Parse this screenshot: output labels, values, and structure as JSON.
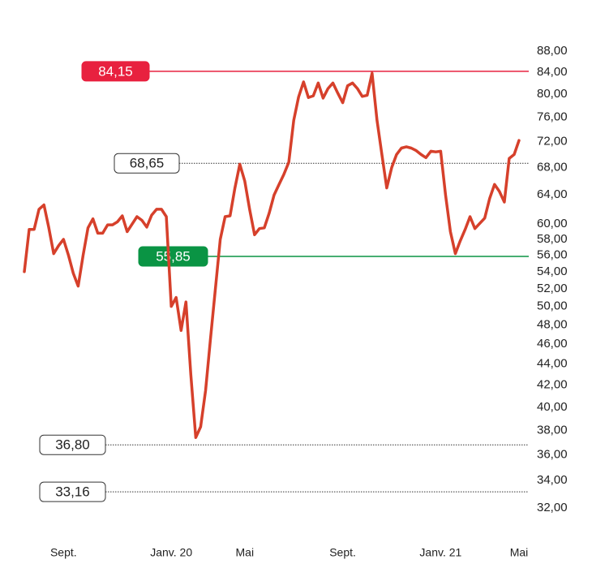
{
  "chart_data": {
    "type": "line",
    "log_scale": true,
    "categories": [
      null,
      null,
      null,
      null,
      null,
      null,
      null,
      null,
      "Sept.",
      null,
      null,
      null,
      null,
      null,
      null,
      null,
      null,
      null,
      null,
      null,
      null,
      null,
      null,
      null,
      null,
      null,
      null,
      null,
      null,
      null,
      "Janv. 20",
      null,
      null,
      null,
      null,
      null,
      null,
      null,
      null,
      null,
      null,
      null,
      null,
      null,
      null,
      "Mai",
      null,
      null,
      null,
      null,
      null,
      null,
      null,
      null,
      null,
      null,
      null,
      null,
      null,
      null,
      null,
      null,
      null,
      null,
      null,
      "Sept.",
      null,
      null,
      null,
      null,
      null,
      null,
      null,
      null,
      null,
      null,
      null,
      null,
      null,
      null,
      null,
      null,
      null,
      null,
      null,
      "Janv. 21",
      null,
      null,
      null,
      null,
      null,
      null,
      null,
      null,
      null,
      null,
      null,
      null,
      null,
      null,
      null,
      "Mai"
    ],
    "series": [
      {
        "color": "#d6402b",
        "values": [
          54.0,
          59.3,
          59.3,
          62.0,
          62.6,
          59.5,
          56.2,
          57.2,
          58.0,
          56.0,
          53.8,
          52.3,
          56.0,
          59.5,
          60.7,
          58.8,
          58.8,
          59.9,
          59.9,
          60.3,
          61.1,
          59.0,
          60.0,
          61.0,
          60.5,
          59.6,
          61.2,
          62.0,
          62.0,
          61.0,
          50.0,
          51.0,
          47.4,
          50.5,
          43.0,
          37.4,
          38.3,
          41.5,
          46.5,
          51.9,
          58.0,
          61.0,
          61.1,
          65.0,
          68.5,
          66.0,
          62.0,
          58.6,
          59.4,
          59.5,
          61.5,
          64.0,
          65.5,
          67.0,
          68.8,
          75.5,
          79.5,
          82.2,
          79.4,
          79.7,
          82.0,
          79.3,
          81.0,
          82.0,
          80.2,
          78.5,
          81.5,
          82.0,
          81.0,
          79.6,
          79.8,
          83.8,
          75.5,
          70.0,
          65.0,
          68.0,
          70.0,
          71.0,
          71.2,
          71.0,
          70.6,
          70.0,
          69.5,
          70.5,
          70.4,
          70.5,
          64.0,
          59.0,
          56.2,
          57.8,
          59.3,
          61.0,
          59.4,
          60.1,
          60.8,
          63.5,
          65.5,
          64.5,
          63.0,
          69.4,
          70.0,
          72.2
        ]
      }
    ],
    "ylim": [
      32,
      88
    ],
    "yticks": [
      {
        "value": 88,
        "label": "88,00"
      },
      {
        "value": 84,
        "label": "84,00"
      },
      {
        "value": 80,
        "label": "80,00"
      },
      {
        "value": 76,
        "label": "76,00"
      },
      {
        "value": 72,
        "label": "72,00"
      },
      {
        "value": 68,
        "label": "68,00"
      },
      {
        "value": 64,
        "label": "64,00"
      },
      {
        "value": 60,
        "label": "60,00"
      },
      {
        "value": 58,
        "label": "58,00"
      },
      {
        "value": 56,
        "label": "56,00"
      },
      {
        "value": 54,
        "label": "54,00"
      },
      {
        "value": 52,
        "label": "52,00"
      },
      {
        "value": 50,
        "label": "50,00"
      },
      {
        "value": 48,
        "label": "48,00"
      },
      {
        "value": 46,
        "label": "46,00"
      },
      {
        "value": 44,
        "label": "44,00"
      },
      {
        "value": 42,
        "label": "42,00"
      },
      {
        "value": 40,
        "label": "40,00"
      },
      {
        "value": 38,
        "label": "38,00"
      },
      {
        "value": 36,
        "label": "36,00"
      },
      {
        "value": 34,
        "label": "34,00"
      },
      {
        "value": 32,
        "label": "32,00"
      }
    ],
    "reference_lines": [
      {
        "value": 84.15,
        "label": "84,15",
        "color": "#e8213f",
        "style": "solid",
        "filled": true
      },
      {
        "value": 68.65,
        "label": "68,65",
        "color": "#333333",
        "style": "dotted",
        "filled": false
      },
      {
        "value": 55.85,
        "label": "55,85",
        "color": "#0a9444",
        "style": "solid",
        "filled": true
      },
      {
        "value": 36.8,
        "label": "36,80",
        "color": "#333333",
        "style": "dotted",
        "filled": false
      },
      {
        "value": 33.16,
        "label": "33,16",
        "color": "#333333",
        "style": "dotted",
        "filled": false
      }
    ]
  }
}
